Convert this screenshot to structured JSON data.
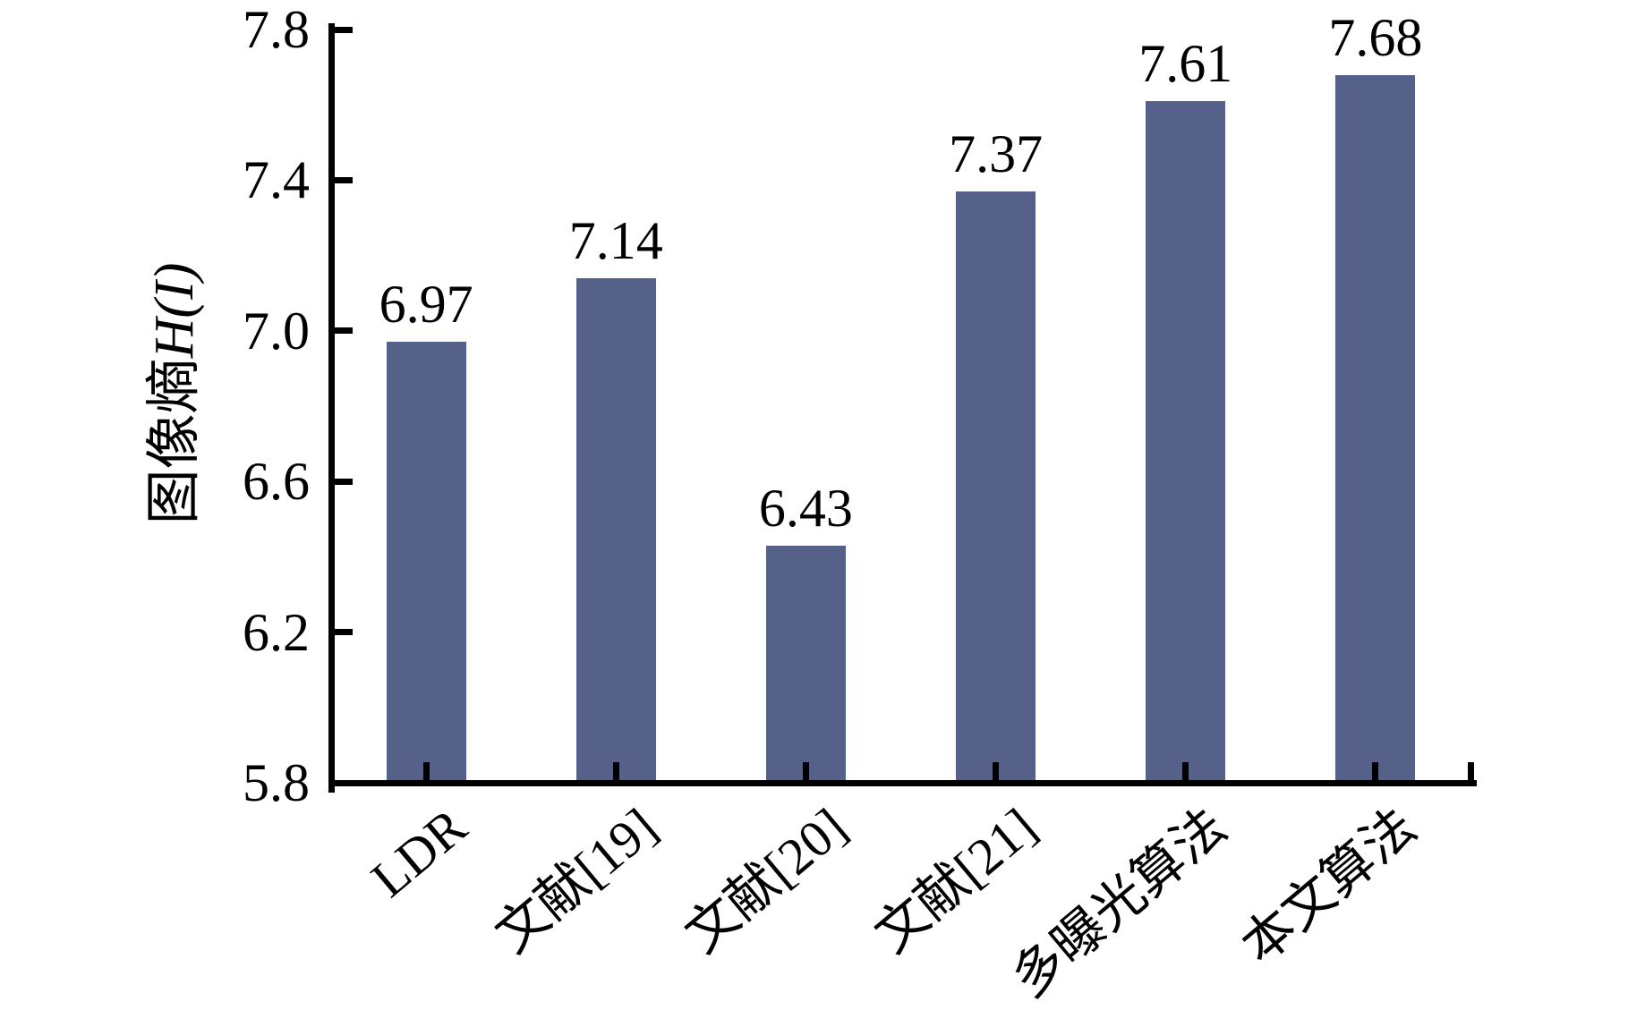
{
  "chart_data": {
    "type": "bar",
    "title": "",
    "categories": [
      "LDR",
      "文献[19]",
      "文献[20]",
      "文献[21]",
      "多曝光算法",
      "本文算法"
    ],
    "values": [
      6.97,
      7.14,
      6.43,
      7.37,
      7.61,
      7.68
    ],
    "value_labels": [
      "6.97",
      "7.14",
      "6.43",
      "7.37",
      "7.61",
      "7.68"
    ],
    "ylabel": "图像熵H(I)",
    "ylabel_prefix": "图像熵",
    "ylabel_math": "H(I)",
    "xlabel": "",
    "ylim": [
      5.8,
      7.8
    ],
    "yticks": [
      "5.8",
      "6.2",
      "6.6",
      "7.0",
      "7.4",
      "7.8"
    ],
    "grid": false,
    "legend": null,
    "bar_color": "#556189",
    "axis_color": "#000000"
  }
}
